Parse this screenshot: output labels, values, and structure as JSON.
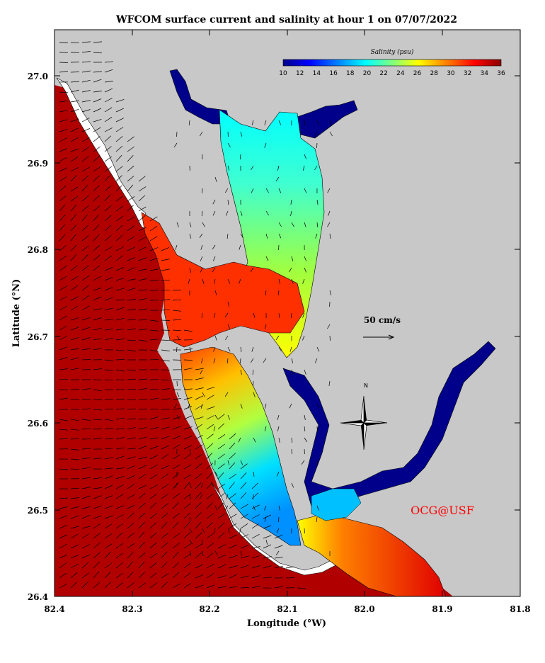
{
  "title": "WFCOM surface current and salinity at hour 1 on 07/07/2022",
  "xlabel": "Longitude (°W)",
  "ylabel": "Latitude (°N)",
  "x_ticks": [
    "82.4",
    "82.3",
    "82.2",
    "82.1",
    "82.0",
    "81.9",
    "81.8"
  ],
  "y_ticks": [
    "27.0",
    "26.9",
    "26.8",
    "26.7",
    "26.6",
    "26.5",
    "26.4"
  ],
  "colorbar": {
    "title": "Salinity (psu)",
    "ticks": [
      "10",
      "12",
      "14",
      "16",
      "18",
      "20",
      "22",
      "24",
      "26",
      "28",
      "30",
      "32",
      "34",
      "36"
    ],
    "min": 10,
    "max": 36,
    "colors": [
      "#00008b",
      "#0000ff",
      "#0080ff",
      "#00ffff",
      "#7fff7f",
      "#ffff00",
      "#ff8000",
      "#ff0000",
      "#8b0000"
    ]
  },
  "scale_label": "50 cm/s",
  "compass_label": "N",
  "credit": "OCG@USF",
  "colors": {
    "land": "#c8c8c8",
    "gulf_salinity": "#b00000",
    "credit": "#ff0000"
  },
  "regions": {
    "peace_river_upper": {
      "salinity_psu": 10
    },
    "charlotte_harbor_north": {
      "salinity_psu": 20
    },
    "charlotte_harbor_middle": {
      "salinity_psu": 24
    },
    "boca_grande_pass": {
      "salinity_psu": 33
    },
    "pine_island_sound": {
      "salinity_psu": 22
    },
    "caloosahatchee_river": {
      "salinity_psu": 10
    },
    "gulf_of_mexico": {
      "salinity_psu": 35
    }
  }
}
